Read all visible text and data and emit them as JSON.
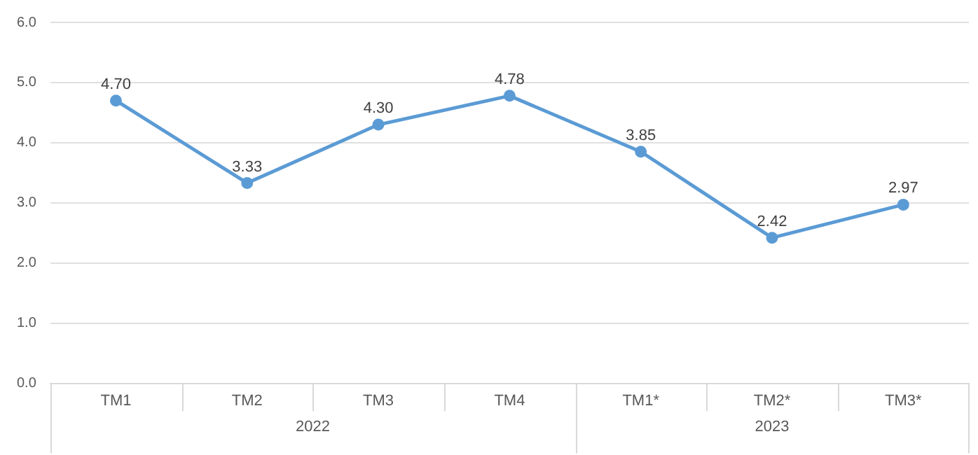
{
  "chart_data": {
    "type": "line",
    "categories": [
      "TM1",
      "TM2",
      "TM3",
      "TM4",
      "TM1*",
      "TM2*",
      "TM3*"
    ],
    "series": [
      {
        "color": "#5b9bd5",
        "values": [
          4.7,
          3.33,
          4.3,
          4.78,
          3.85,
          2.42,
          2.97
        ]
      }
    ],
    "ylim": [
      0,
      6
    ],
    "yticks": [
      {
        "value": 0,
        "label": "0.0"
      },
      {
        "value": 1,
        "label": "1.0"
      },
      {
        "value": 2,
        "label": "2.0"
      },
      {
        "value": 3,
        "label": "3.0"
      },
      {
        "value": 4,
        "label": "4.0"
      },
      {
        "value": 5,
        "label": "5.0"
      },
      {
        "value": 6,
        "label": "6.0"
      }
    ],
    "value_labels": [
      "4.70",
      "3.33",
      "4.30",
      "4.78",
      "3.85",
      "2.42",
      "2.97"
    ],
    "annotations": [
      "2022",
      "2023"
    ],
    "grid": "y",
    "legend": false,
    "marker": "circle",
    "line_style": "solid"
  }
}
